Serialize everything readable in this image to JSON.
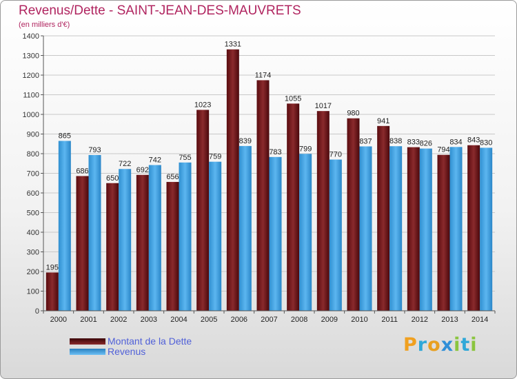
{
  "header": {
    "title": "Revenus/Dette - SAINT-JEAN-DES-MAUVRETS",
    "subtitle": "(en milliers d'€)"
  },
  "legend": {
    "dette_label": "Montant de la Dette",
    "revenus_label": "Revenus"
  },
  "logo": {
    "letters": [
      "P",
      "r",
      "o",
      "x",
      "i",
      "t",
      "i"
    ],
    "colors": [
      "#f0a020",
      "#2fa8d8",
      "#e8a020",
      "#2f8fd8",
      "#8bc53f",
      "#2fa8d8",
      "#8bc53f"
    ]
  },
  "colors": {
    "dette": "#7a1c1c",
    "revenus": "#4aa8e8",
    "title": "#b0245f"
  },
  "chart_data": {
    "type": "bar",
    "categories": [
      "2000",
      "2001",
      "2002",
      "2003",
      "2004",
      "2005",
      "2006",
      "2007",
      "2008",
      "2009",
      "2010",
      "2011",
      "2012",
      "2013",
      "2014"
    ],
    "series": [
      {
        "name": "Montant de la Dette",
        "values": [
          195,
          686,
          650,
          692,
          656,
          1023,
          1331,
          1174,
          1055,
          1017,
          980,
          941,
          833,
          794,
          843
        ]
      },
      {
        "name": "Revenus",
        "values": [
          865,
          793,
          722,
          742,
          755,
          759,
          839,
          783,
          799,
          770,
          837,
          838,
          826,
          834,
          830
        ]
      }
    ],
    "title": "Revenus/Dette - SAINT-JEAN-DES-MAUVRETS",
    "ylabel": "(en milliers d'€)",
    "ylim": [
      0,
      1400
    ],
    "yticks": [
      0,
      100,
      200,
      300,
      400,
      500,
      600,
      700,
      800,
      900,
      1000,
      1100,
      1200,
      1300,
      1400
    ],
    "grid": true,
    "legend": "bottom-left"
  }
}
